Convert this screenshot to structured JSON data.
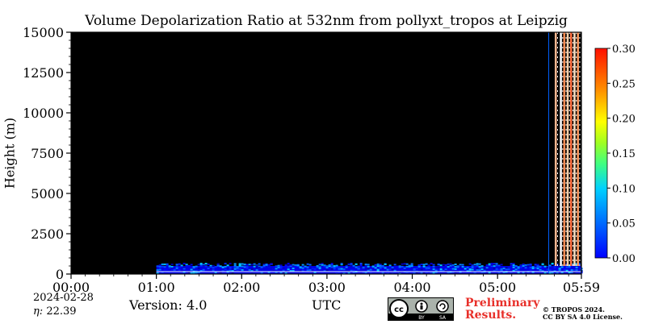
{
  "chart_data": {
    "type": "heatmap",
    "title": "Volume Depolarization Ratio at 532nm from pollyxt_tropos at Leipzig",
    "xlabel": "UTC",
    "ylabel": "Height (m)",
    "x_ticks": [
      "00:00",
      "01:00",
      "02:00",
      "03:00",
      "04:00",
      "05:00",
      "05:59"
    ],
    "x_tick_hours": [
      0,
      1,
      2,
      3,
      4,
      5,
      5.983
    ],
    "xlim_hours": [
      0,
      5.983
    ],
    "y_ticks": [
      0,
      2500,
      5000,
      7500,
      10000,
      12500,
      15000
    ],
    "ylim": [
      0,
      15000
    ],
    "colorbar": {
      "ticks": [
        "0.00",
        "0.05",
        "0.10",
        "0.15",
        "0.20",
        "0.25",
        "0.30"
      ],
      "range": [
        0,
        0.3
      ],
      "colormap": "jet"
    },
    "background_color": "#000000",
    "data_start_hour": 1.0,
    "low_layer": {
      "top_m": 500,
      "base_value": 0.03
    },
    "high_depol_columns_hours": [
      5.68,
      5.74,
      5.78,
      5.82,
      5.86,
      5.9,
      5.94
    ],
    "blue_column_hour": 5.6
  },
  "footer": {
    "date": "2024-02-28",
    "eta_label": "η:",
    "eta_value": "22.39",
    "version": "Version: 4.0",
    "preliminary": [
      "Preliminary",
      "Results."
    ],
    "copyright": [
      "© TROPOS 2024.",
      "CC BY SA 4.0 License."
    ],
    "cc_badge": [
      "cc",
      "BY",
      "SA"
    ]
  }
}
